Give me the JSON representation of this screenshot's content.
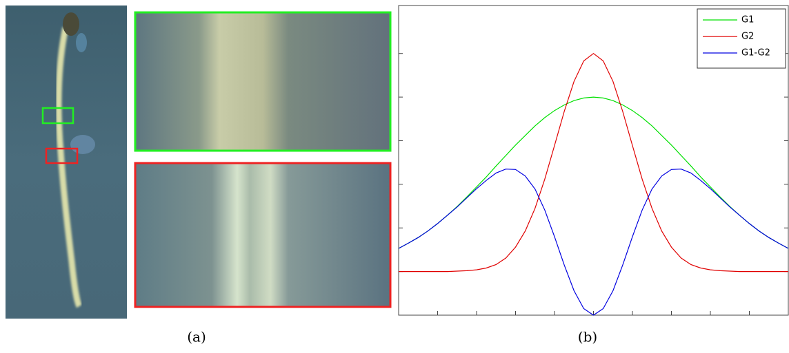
{
  "captions": {
    "a": "(a)",
    "b": "(b)"
  },
  "chart_data": {
    "type": "line",
    "x": [
      -5,
      -4.75,
      -4.5,
      -4.25,
      -4,
      -3.75,
      -3.5,
      -3.25,
      -3,
      -2.75,
      -2.5,
      -2.25,
      -2,
      -1.75,
      -1.5,
      -1.25,
      -1,
      -0.75,
      -0.5,
      -0.25,
      0,
      0.25,
      0.5,
      0.75,
      1,
      1.25,
      1.5,
      1.75,
      2,
      2.25,
      2.5,
      2.75,
      3,
      3.25,
      3.5,
      3.75,
      4,
      4.25,
      4.5,
      4.75,
      5
    ],
    "series": [
      {
        "name": "G1",
        "color": "#00e000",
        "values": [
          0.53,
          0.65,
          0.78,
          0.93,
          1.1,
          1.29,
          1.49,
          1.71,
          1.94,
          2.17,
          2.42,
          2.66,
          2.9,
          3.12,
          3.34,
          3.53,
          3.69,
          3.82,
          3.92,
          3.98,
          4,
          3.98,
          3.92,
          3.82,
          3.69,
          3.53,
          3.34,
          3.12,
          2.9,
          2.66,
          2.42,
          2.17,
          1.94,
          1.71,
          1.49,
          1.29,
          1.1,
          0.93,
          0.78,
          0.65,
          0.53
        ]
      },
      {
        "name": "G2",
        "color": "#e00000",
        "values": [
          0,
          0,
          0,
          0,
          0,
          0,
          0.01,
          0.02,
          0.04,
          0.08,
          0.16,
          0.31,
          0.56,
          0.93,
          1.45,
          2.12,
          2.89,
          3.67,
          4.36,
          4.83,
          5,
          4.83,
          4.36,
          3.67,
          2.89,
          2.12,
          1.45,
          0.93,
          0.56,
          0.31,
          0.16,
          0.08,
          0.04,
          0.02,
          0.01,
          0,
          0,
          0,
          0,
          0,
          0
        ]
      },
      {
        "name": "G1-G2",
        "color": "#0000e0",
        "values": [
          0.53,
          0.65,
          0.78,
          0.93,
          1.1,
          1.29,
          1.48,
          1.69,
          1.9,
          2.09,
          2.26,
          2.35,
          2.34,
          2.19,
          1.89,
          1.41,
          0.8,
          0.15,
          -0.44,
          -0.85,
          -1,
          -0.85,
          -0.44,
          0.15,
          0.8,
          1.41,
          1.89,
          2.19,
          2.34,
          2.35,
          2.26,
          2.09,
          1.9,
          1.69,
          1.48,
          1.29,
          1.1,
          0.93,
          0.78,
          0.65,
          0.53
        ]
      }
    ],
    "xlim": [
      -5,
      5
    ],
    "xticks": [
      -4,
      -3,
      -2,
      -1,
      0,
      1,
      2,
      3,
      4
    ],
    "ylim": [
      -1,
      6.1
    ],
    "yticks": [
      0,
      1,
      2,
      3,
      4,
      5
    ],
    "grid": false,
    "legend": "upper right"
  }
}
